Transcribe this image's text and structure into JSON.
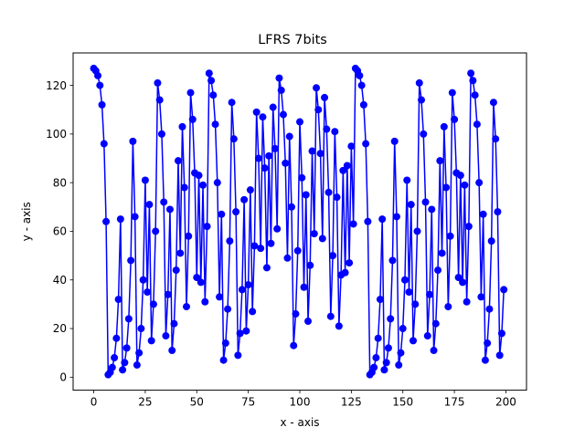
{
  "chart_data": {
    "type": "line",
    "title": "LFRS 7bits",
    "xlabel": "x - axis",
    "ylabel": "y - axis",
    "xlim": [
      -10,
      210
    ],
    "ylim": [
      -5.35,
      133.35
    ],
    "xticks": [
      0,
      25,
      50,
      75,
      100,
      125,
      150,
      175,
      200
    ],
    "yticks": [
      0,
      20,
      40,
      60,
      80,
      100,
      120
    ],
    "grid": false,
    "marker": "circle",
    "color": "#0000ff",
    "series": [
      {
        "values": [
          127,
          126,
          124,
          120,
          112,
          96,
          64,
          1,
          2,
          4,
          8,
          16,
          32,
          65,
          3,
          6,
          12,
          24,
          48,
          97,
          66,
          5,
          10,
          20,
          40,
          81,
          35,
          71,
          15,
          30,
          60,
          121,
          114,
          100,
          72,
          17,
          34,
          69,
          11,
          22,
          44,
          89,
          51,
          103,
          78,
          29,
          58,
          117,
          106,
          84,
          41,
          83,
          39,
          79,
          31,
          62,
          125,
          122,
          116,
          104,
          80,
          33,
          67,
          7,
          14,
          28,
          56,
          113,
          98,
          68,
          9,
          18,
          36,
          73,
          19,
          38,
          77,
          27,
          54,
          109,
          90,
          53,
          107,
          86,
          45,
          91,
          55,
          111,
          94,
          61,
          123,
          118,
          108,
          88,
          49,
          99,
          70,
          13,
          26,
          52,
          105,
          82,
          37,
          75,
          23,
          46,
          93,
          59,
          119,
          110,
          92,
          57,
          115,
          102,
          76,
          25,
          50,
          101,
          74,
          21,
          42,
          85,
          43,
          87,
          47,
          95,
          63,
          127,
          126,
          124,
          120,
          112,
          96,
          64,
          1,
          2,
          4,
          8,
          16,
          32,
          65,
          3,
          6,
          12,
          24,
          48,
          97,
          66,
          5,
          10,
          20,
          40,
          81,
          35,
          71,
          15,
          30,
          60,
          121,
          114,
          100,
          72,
          17,
          34,
          69,
          11,
          22,
          44,
          89,
          51,
          103,
          78,
          29,
          58,
          117,
          106,
          84,
          41,
          83,
          39,
          79,
          31,
          62,
          125,
          122,
          116,
          104,
          80,
          33,
          67,
          7,
          14,
          28,
          56,
          113,
          98,
          68,
          9,
          18,
          36
        ]
      }
    ]
  }
}
